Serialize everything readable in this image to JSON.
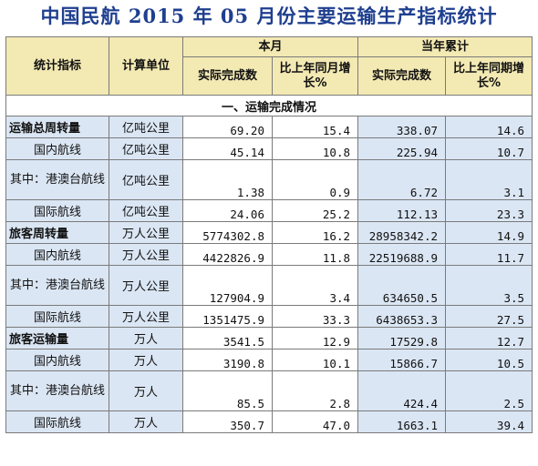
{
  "title": "中国民航 2015 年 05 月份主要运输生产指标统计",
  "header": {
    "indicator": "统计指标",
    "unit": "计算单位",
    "this_month": "本月",
    "ytd": "当年累计",
    "actual": "实际完成数",
    "yoy_month": "比上年同月增长%",
    "actual_ytd": "实际完成数",
    "yoy_period": "比上年同期增长%"
  },
  "section": "一、运输完成情况",
  "rows": [
    {
      "name": "运输总周转量",
      "unit": "亿吨公里",
      "m_actual": "69.20",
      "m_yoy": "15.4",
      "y_actual": "338.07",
      "y_yoy": "14.6",
      "style": "main"
    },
    {
      "name": "国内航线",
      "unit": "亿吨公里",
      "m_actual": "45.14",
      "m_yoy": "10.8",
      "y_actual": "225.94",
      "y_yoy": "10.7",
      "style": "sub"
    },
    {
      "name": "其中：港澳台航线",
      "unit": "亿吨公里",
      "m_actual": "1.38",
      "m_yoy": "0.9",
      "y_actual": "6.72",
      "y_yoy": "3.1",
      "style": "multi"
    },
    {
      "name": "国际航线",
      "unit": "亿吨公里",
      "m_actual": "24.06",
      "m_yoy": "25.2",
      "y_actual": "112.13",
      "y_yoy": "23.3",
      "style": "sub"
    },
    {
      "name": "旅客周转量",
      "unit": "万人公里",
      "m_actual": "5774302.8",
      "m_yoy": "16.2",
      "y_actual": "28958342.2",
      "y_yoy": "14.9",
      "style": "main"
    },
    {
      "name": "国内航线",
      "unit": "万人公里",
      "m_actual": "4422826.9",
      "m_yoy": "11.8",
      "y_actual": "22519688.9",
      "y_yoy": "11.7",
      "style": "sub"
    },
    {
      "name": "其中：港澳台航线",
      "unit": "万人公里",
      "m_actual": "127904.9",
      "m_yoy": "3.4",
      "y_actual": "634650.5",
      "y_yoy": "3.5",
      "style": "multi"
    },
    {
      "name": "国际航线",
      "unit": "万人公里",
      "m_actual": "1351475.9",
      "m_yoy": "33.3",
      "y_actual": "6438653.3",
      "y_yoy": "27.5",
      "style": "sub"
    },
    {
      "name": "旅客运输量",
      "unit": "万人",
      "m_actual": "3541.5",
      "m_yoy": "12.9",
      "y_actual": "17529.8",
      "y_yoy": "12.7",
      "style": "main"
    },
    {
      "name": "国内航线",
      "unit": "万人",
      "m_actual": "3190.8",
      "m_yoy": "10.1",
      "y_actual": "15866.7",
      "y_yoy": "10.5",
      "style": "sub"
    },
    {
      "name": "其中：港澳台航线",
      "unit": "万人",
      "m_actual": "85.5",
      "m_yoy": "2.8",
      "y_actual": "424.4",
      "y_yoy": "2.5",
      "style": "multi"
    },
    {
      "name": "国际航线",
      "unit": "万人",
      "m_actual": "350.7",
      "m_yoy": "47.0",
      "y_actual": "1663.1",
      "y_yoy": "39.4",
      "style": "sub"
    }
  ],
  "colors": {
    "header_bg": "#f3e9b3",
    "blue_cell": "#dbe6f4",
    "title": "#1f3f8f"
  }
}
